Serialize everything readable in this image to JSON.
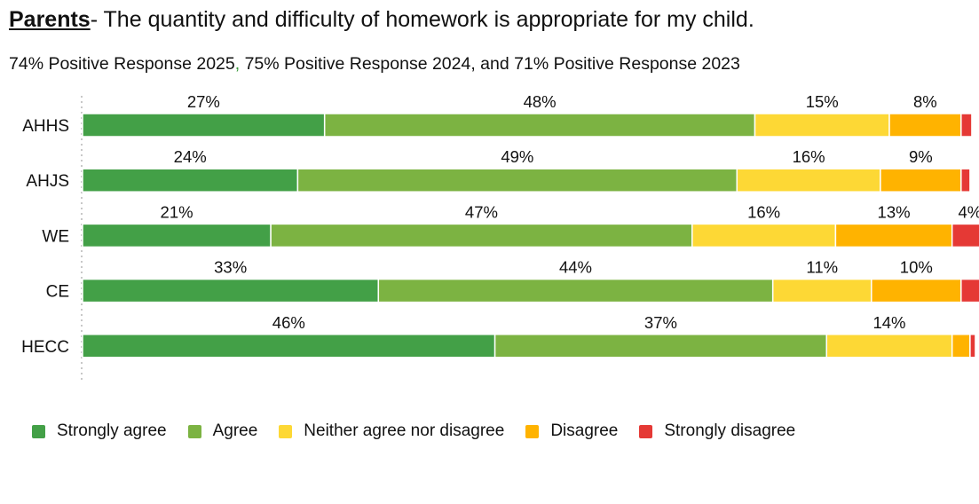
{
  "title": {
    "lead": "Parents",
    "rest": "- The quantity and difficulty of homework is appropriate for my child."
  },
  "subtitle": {
    "part1": "74% Positive Response 2025",
    "comma": ",",
    "part2": " 75% Positive Response 2024, and 71% Positive Response 2023"
  },
  "chart_data": {
    "type": "bar",
    "orientation": "horizontal",
    "stacked": true,
    "categories": [
      "AHHS",
      "AHJS",
      "WE",
      "CE",
      "HECC"
    ],
    "series": [
      {
        "name": "Strongly agree",
        "color": "#43a047",
        "values": [
          27,
          24,
          21,
          33,
          46
        ],
        "labels": [
          "27%",
          "24%",
          "21%",
          "33%",
          "46%"
        ]
      },
      {
        "name": "Agree",
        "color": "#7cb342",
        "values": [
          48,
          49,
          47,
          44,
          37
        ],
        "labels": [
          "48%",
          "49%",
          "47%",
          "44%",
          "37%"
        ]
      },
      {
        "name": "Neither agree nor disagree",
        "color": "#fdd835",
        "values": [
          15,
          16,
          16,
          11,
          14
        ],
        "labels": [
          "15%",
          "16%",
          "16%",
          "11%",
          "14%"
        ]
      },
      {
        "name": "Disagree",
        "color": "#ffb300",
        "values": [
          8,
          9,
          13,
          10,
          2
        ],
        "labels": [
          "8%",
          "9%",
          "13%",
          "10%",
          ""
        ]
      },
      {
        "name": "Strongly disagree",
        "color": "#e53935",
        "values": [
          1.2,
          1,
          4,
          2.2,
          0.6
        ],
        "labels": [
          "",
          "",
          "4%",
          "",
          ""
        ]
      }
    ],
    "xlim": [
      0,
      100
    ],
    "legend": "bottom"
  }
}
